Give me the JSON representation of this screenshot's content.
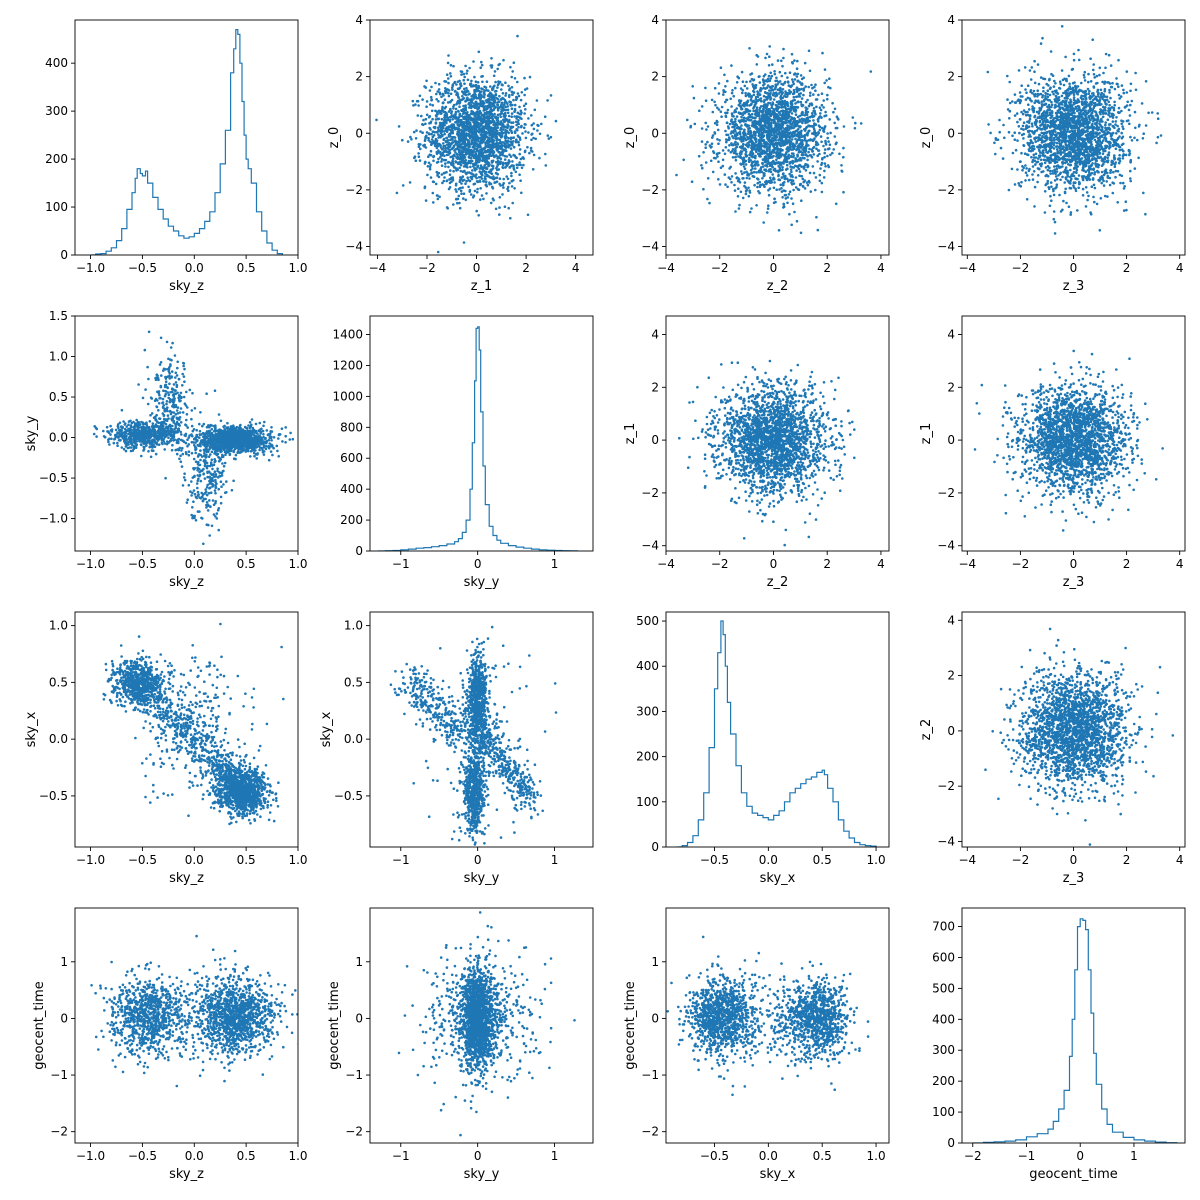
{
  "style": {
    "color": "#1f77b4",
    "axis_color": "#000000",
    "background": "#ffffff"
  },
  "chart_data": [
    {
      "row": 0,
      "col": 0,
      "type": "histogram",
      "xlabel": "sky_z",
      "ylabel": "",
      "xlim": [
        -1.15,
        1.0
      ],
      "ylim": [
        0,
        490
      ],
      "xticks": [
        -1.0,
        -0.5,
        0.0,
        0.5,
        1.0
      ],
      "yticks": [
        0,
        100,
        200,
        300,
        400
      ],
      "x": [
        -1.0,
        -0.95,
        -0.9,
        -0.85,
        -0.8,
        -0.75,
        -0.7,
        -0.65,
        -0.6,
        -0.57,
        -0.55,
        -0.52,
        -0.5,
        -0.47,
        -0.45,
        -0.4,
        -0.35,
        -0.3,
        -0.25,
        -0.2,
        -0.15,
        -0.1,
        -0.05,
        0.0,
        0.05,
        0.1,
        0.15,
        0.2,
        0.25,
        0.3,
        0.35,
        0.38,
        0.4,
        0.42,
        0.44,
        0.46,
        0.48,
        0.5,
        0.52,
        0.55,
        0.6,
        0.65,
        0.7,
        0.75,
        0.8,
        0.85
      ],
      "y": [
        0,
        2,
        3,
        8,
        15,
        30,
        55,
        95,
        130,
        160,
        180,
        170,
        165,
        175,
        150,
        120,
        95,
        75,
        60,
        50,
        40,
        35,
        38,
        45,
        55,
        70,
        90,
        130,
        190,
        260,
        380,
        430,
        470,
        460,
        400,
        320,
        250,
        200,
        180,
        150,
        90,
        50,
        25,
        10,
        3,
        0
      ]
    },
    {
      "row": 0,
      "col": 1,
      "type": "scatter",
      "xlabel": "z_1",
      "ylabel": "z_0",
      "xlim": [
        -4.3,
        4.7
      ],
      "ylim": [
        -4.3,
        4.0
      ],
      "xticks": [
        -4,
        -2,
        0,
        2,
        4
      ],
      "yticks": [
        -4,
        -2,
        0,
        2,
        4
      ],
      "distribution": {
        "kind": "gaussian",
        "mean": [
          0,
          0
        ],
        "sd": [
          1,
          1
        ],
        "n": 2200
      }
    },
    {
      "row": 0,
      "col": 2,
      "type": "scatter",
      "xlabel": "z_2",
      "ylabel": "z_0",
      "xlim": [
        -4.0,
        4.3
      ],
      "ylim": [
        -4.3,
        4.0
      ],
      "xticks": [
        -4,
        -2,
        0,
        2,
        4
      ],
      "yticks": [
        -4,
        -2,
        0,
        2,
        4
      ],
      "distribution": {
        "kind": "gaussian",
        "mean": [
          0,
          0
        ],
        "sd": [
          1,
          1
        ],
        "n": 2200
      }
    },
    {
      "row": 0,
      "col": 3,
      "type": "scatter",
      "xlabel": "z_3",
      "ylabel": "z_0",
      "xlim": [
        -4.2,
        4.2
      ],
      "ylim": [
        -4.3,
        4.0
      ],
      "xticks": [
        -4,
        -2,
        0,
        2,
        4
      ],
      "yticks": [
        -4,
        -2,
        0,
        2,
        4
      ],
      "distribution": {
        "kind": "gaussian",
        "mean": [
          0,
          0
        ],
        "sd": [
          1,
          1
        ],
        "n": 2200
      }
    },
    {
      "row": 1,
      "col": 0,
      "type": "scatter",
      "xlabel": "sky_z",
      "ylabel": "sky_y",
      "xlim": [
        -1.15,
        1.0
      ],
      "ylim": [
        -1.4,
        1.5
      ],
      "xticks": [
        -1.0,
        -0.5,
        0.0,
        0.5,
        1.0
      ],
      "yticks": [
        -1.0,
        -0.5,
        0.0,
        0.5,
        1.0,
        1.5
      ],
      "distribution": {
        "kind": "mixture",
        "components": [
          {
            "mean": [
              0.4,
              -0.03
            ],
            "sd": [
              0.17,
              0.08
            ],
            "n": 1100
          },
          {
            "mean": [
              -0.5,
              0.03
            ],
            "sd": [
              0.17,
              0.08
            ],
            "n": 600
          },
          {
            "mean": [
              -0.22,
              0.35
            ],
            "sd": [
              0.1,
              0.3
            ],
            "n": 280
          },
          {
            "mean": [
              0.12,
              -0.4
            ],
            "sd": [
              0.1,
              0.3
            ],
            "n": 280
          }
        ]
      }
    },
    {
      "row": 1,
      "col": 1,
      "type": "histogram",
      "xlabel": "sky_y",
      "ylabel": "",
      "xlim": [
        -1.4,
        1.5
      ],
      "ylim": [
        0,
        1520
      ],
      "xticks": [
        -1,
        0,
        1
      ],
      "yticks": [
        0,
        200,
        400,
        600,
        800,
        1000,
        1200,
        1400
      ],
      "x": [
        -1.3,
        -1.2,
        -1.1,
        -1.0,
        -0.9,
        -0.8,
        -0.7,
        -0.6,
        -0.5,
        -0.4,
        -0.3,
        -0.25,
        -0.2,
        -0.15,
        -0.1,
        -0.07,
        -0.04,
        -0.02,
        0.0,
        0.02,
        0.04,
        0.07,
        0.1,
        0.15,
        0.2,
        0.25,
        0.3,
        0.4,
        0.5,
        0.6,
        0.7,
        0.8,
        0.9,
        1.0,
        1.1,
        1.2,
        1.3
      ],
      "y": [
        0,
        2,
        3,
        8,
        12,
        18,
        22,
        28,
        35,
        45,
        60,
        80,
        120,
        200,
        400,
        700,
        1100,
        1440,
        1450,
        1300,
        900,
        550,
        300,
        160,
        100,
        70,
        50,
        35,
        25,
        18,
        12,
        8,
        5,
        3,
        2,
        1,
        0
      ]
    },
    {
      "row": 1,
      "col": 2,
      "type": "scatter",
      "xlabel": "z_2",
      "ylabel": "z_1",
      "xlim": [
        -4.0,
        4.3
      ],
      "ylim": [
        -4.2,
        4.7
      ],
      "xticks": [
        -4,
        -2,
        0,
        2,
        4
      ],
      "yticks": [
        -4,
        -2,
        0,
        2,
        4
      ],
      "distribution": {
        "kind": "gaussian",
        "mean": [
          0,
          0
        ],
        "sd": [
          1,
          1
        ],
        "n": 2200
      }
    },
    {
      "row": 1,
      "col": 3,
      "type": "scatter",
      "xlabel": "z_3",
      "ylabel": "z_1",
      "xlim": [
        -4.2,
        4.2
      ],
      "ylim": [
        -4.2,
        4.7
      ],
      "xticks": [
        -4,
        -2,
        0,
        2,
        4
      ],
      "yticks": [
        -4,
        -2,
        0,
        2,
        4
      ],
      "distribution": {
        "kind": "gaussian",
        "mean": [
          0,
          0
        ],
        "sd": [
          1,
          1
        ],
        "n": 2200
      }
    },
    {
      "row": 2,
      "col": 0,
      "type": "scatter",
      "xlabel": "sky_z",
      "ylabel": "sky_x",
      "xlim": [
        -1.15,
        1.0
      ],
      "ylim": [
        -0.95,
        1.12
      ],
      "xticks": [
        -1.0,
        -0.5,
        0.0,
        0.5,
        1.0
      ],
      "yticks": [
        -0.5,
        0.0,
        0.5,
        1.0
      ],
      "distribution": {
        "kind": "mixture",
        "components": [
          {
            "mean": [
              0.45,
              -0.45
            ],
            "sd": [
              0.13,
              0.1
            ],
            "n": 900
          },
          {
            "mean": [
              -0.55,
              0.5
            ],
            "sd": [
              0.12,
              0.1
            ],
            "n": 600
          },
          {
            "line": [
              [
                -0.6,
                0.55
              ],
              [
                0.6,
                -0.55
              ]
            ],
            "spread": 0.08,
            "n": 600
          },
          {
            "mean": [
              0.0,
              0.1
            ],
            "sd": [
              0.25,
              0.3
            ],
            "n": 300
          }
        ]
      }
    },
    {
      "row": 2,
      "col": 1,
      "type": "scatter",
      "xlabel": "sky_y",
      "ylabel": "sky_x",
      "xlim": [
        -1.4,
        1.5
      ],
      "ylim": [
        -0.95,
        1.12
      ],
      "xticks": [
        -1,
        0,
        1
      ],
      "yticks": [
        -0.5,
        0.0,
        0.5,
        1.0
      ],
      "distribution": {
        "kind": "mixture",
        "components": [
          {
            "mean": [
              0.0,
              0.35
            ],
            "sd": [
              0.06,
              0.2
            ],
            "n": 700
          },
          {
            "mean": [
              -0.05,
              -0.45
            ],
            "sd": [
              0.07,
              0.2
            ],
            "n": 600
          },
          {
            "line": [
              [
                0.0,
                0.1
              ],
              [
                0.7,
                -0.55
              ]
            ],
            "spread": 0.08,
            "n": 350
          },
          {
            "line": [
              [
                -0.9,
                0.5
              ],
              [
                -0.1,
                0.0
              ]
            ],
            "spread": 0.1,
            "n": 300
          },
          {
            "mean": [
              0.0,
              0.0
            ],
            "sd": [
              0.4,
              0.4
            ],
            "n": 150
          }
        ]
      }
    },
    {
      "row": 2,
      "col": 2,
      "type": "histogram",
      "xlabel": "sky_x",
      "ylabel": "",
      "xlim": [
        -0.95,
        1.12
      ],
      "ylim": [
        0,
        520
      ],
      "xticks": [
        -0.5,
        0.0,
        0.5,
        1.0
      ],
      "yticks": [
        0,
        100,
        200,
        300,
        400,
        500
      ],
      "x": [
        -0.85,
        -0.8,
        -0.75,
        -0.7,
        -0.65,
        -0.6,
        -0.55,
        -0.5,
        -0.47,
        -0.44,
        -0.42,
        -0.4,
        -0.38,
        -0.35,
        -0.3,
        -0.25,
        -0.2,
        -0.15,
        -0.1,
        -0.05,
        0.0,
        0.05,
        0.1,
        0.15,
        0.2,
        0.25,
        0.3,
        0.35,
        0.4,
        0.45,
        0.5,
        0.52,
        0.55,
        0.6,
        0.65,
        0.7,
        0.75,
        0.8,
        0.85,
        0.9,
        0.95,
        1.0
      ],
      "y": [
        0,
        3,
        10,
        25,
        60,
        120,
        220,
        350,
        430,
        500,
        470,
        400,
        320,
        250,
        180,
        120,
        90,
        75,
        70,
        65,
        60,
        70,
        80,
        100,
        120,
        130,
        140,
        150,
        155,
        165,
        170,
        160,
        130,
        100,
        60,
        35,
        20,
        10,
        5,
        3,
        2,
        0
      ]
    },
    {
      "row": 2,
      "col": 3,
      "type": "scatter",
      "xlabel": "z_3",
      "ylabel": "z_2",
      "xlim": [
        -4.2,
        4.2
      ],
      "ylim": [
        -4.2,
        4.3
      ],
      "xticks": [
        -4,
        -2,
        0,
        2,
        4
      ],
      "yticks": [
        -4,
        -2,
        0,
        2,
        4
      ],
      "distribution": {
        "kind": "gaussian",
        "mean": [
          0,
          0
        ],
        "sd": [
          1,
          1
        ],
        "n": 2200
      }
    },
    {
      "row": 3,
      "col": 0,
      "type": "scatter",
      "xlabel": "sky_z",
      "ylabel": "geocent_time",
      "xlim": [
        -1.15,
        1.0
      ],
      "ylim": [
        -2.2,
        1.95
      ],
      "xticks": [
        -1.0,
        -0.5,
        0.0,
        0.5,
        1.0
      ],
      "yticks": [
        -2,
        -1,
        0,
        1
      ],
      "distribution": {
        "kind": "mixture",
        "components": [
          {
            "mean": [
              0.4,
              0.05
            ],
            "sd": [
              0.18,
              0.32
            ],
            "n": 1100
          },
          {
            "mean": [
              -0.45,
              0.05
            ],
            "sd": [
              0.18,
              0.32
            ],
            "n": 800
          },
          {
            "mean": [
              0.0,
              0.0
            ],
            "sd": [
              0.4,
              0.5
            ],
            "n": 200
          }
        ]
      }
    },
    {
      "row": 3,
      "col": 1,
      "type": "scatter",
      "xlabel": "sky_y",
      "ylabel": "geocent_time",
      "xlim": [
        -1.4,
        1.5
      ],
      "ylim": [
        -2.2,
        1.95
      ],
      "xticks": [
        -1,
        0,
        1
      ],
      "yticks": [
        -2,
        -1,
        0,
        1
      ],
      "distribution": {
        "kind": "mixture",
        "components": [
          {
            "mean": [
              0.0,
              0.0
            ],
            "sd": [
              0.1,
              0.4
            ],
            "n": 1500
          },
          {
            "mean": [
              0.0,
              0.0
            ],
            "sd": [
              0.35,
              0.55
            ],
            "n": 600
          }
        ]
      }
    },
    {
      "row": 3,
      "col": 2,
      "type": "scatter",
      "xlabel": "sky_x",
      "ylabel": "geocent_time",
      "xlim": [
        -0.95,
        1.12
      ],
      "ylim": [
        -2.2,
        1.95
      ],
      "xticks": [
        -0.5,
        0.0,
        0.5,
        1.0
      ],
      "yticks": [
        -2,
        -1,
        0,
        1
      ],
      "distribution": {
        "kind": "mixture",
        "components": [
          {
            "mean": [
              -0.45,
              0.05
            ],
            "sd": [
              0.15,
              0.32
            ],
            "n": 1000
          },
          {
            "mean": [
              0.45,
              0.0
            ],
            "sd": [
              0.15,
              0.32
            ],
            "n": 900
          },
          {
            "mean": [
              0.0,
              0.0
            ],
            "sd": [
              0.35,
              0.5
            ],
            "n": 200
          }
        ]
      }
    },
    {
      "row": 3,
      "col": 3,
      "type": "histogram",
      "xlabel": "geocent_time",
      "ylabel": "",
      "xlim": [
        -2.2,
        1.95
      ],
      "ylim": [
        0,
        760
      ],
      "xticks": [
        -2,
        -1,
        0,
        1
      ],
      "yticks": [
        0,
        100,
        200,
        300,
        400,
        500,
        600,
        700
      ],
      "x": [
        -2.0,
        -1.8,
        -1.6,
        -1.4,
        -1.2,
        -1.0,
        -0.8,
        -0.6,
        -0.5,
        -0.4,
        -0.3,
        -0.2,
        -0.15,
        -0.1,
        -0.05,
        0.0,
        0.05,
        0.1,
        0.15,
        0.2,
        0.25,
        0.3,
        0.4,
        0.5,
        0.6,
        0.8,
        1.0,
        1.2,
        1.4,
        1.6,
        1.8
      ],
      "y": [
        0,
        2,
        4,
        6,
        10,
        20,
        30,
        45,
        70,
        110,
        170,
        280,
        400,
        560,
        700,
        725,
        720,
        690,
        560,
        420,
        290,
        190,
        110,
        60,
        35,
        18,
        10,
        6,
        3,
        1,
        0
      ]
    }
  ]
}
